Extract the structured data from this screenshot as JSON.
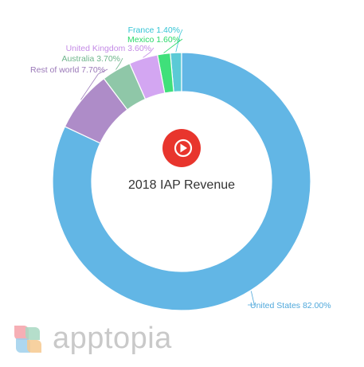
{
  "chart_data": {
    "type": "pie",
    "title": "2018 IAP Revenue",
    "categories": [
      "France",
      "Mexico",
      "United Kingdom",
      "Australia",
      "Rest of world",
      "United States"
    ],
    "values": [
      1.4,
      1.6,
      3.6,
      3.7,
      7.7,
      82.0
    ],
    "labels": [
      "France 1.40%",
      "Mexico 1.60%",
      "United Kingdom 3.60%",
      "Australia 3.70%",
      "Rest of world 7.70%",
      "United States 82.00%"
    ],
    "colors": [
      "#5bcad6",
      "#3fe07a",
      "#d3a6f2",
      "#8fc7a8",
      "#ae8cc8",
      "#62b6e5"
    ],
    "label_colors": [
      "#33c4d4",
      "#2bd96a",
      "#c48be6",
      "#6fb58c",
      "#9a78b8",
      "#4fa8db"
    ],
    "legend": "none"
  },
  "center_icon": "play-button-icon",
  "brand": {
    "name": "apptopia",
    "logo_icon": "apptopia-logo-icon",
    "logo_colors": [
      "#f4a1a8",
      "#a8d8c2",
      "#9fd0ec",
      "#f6c98f"
    ]
  }
}
